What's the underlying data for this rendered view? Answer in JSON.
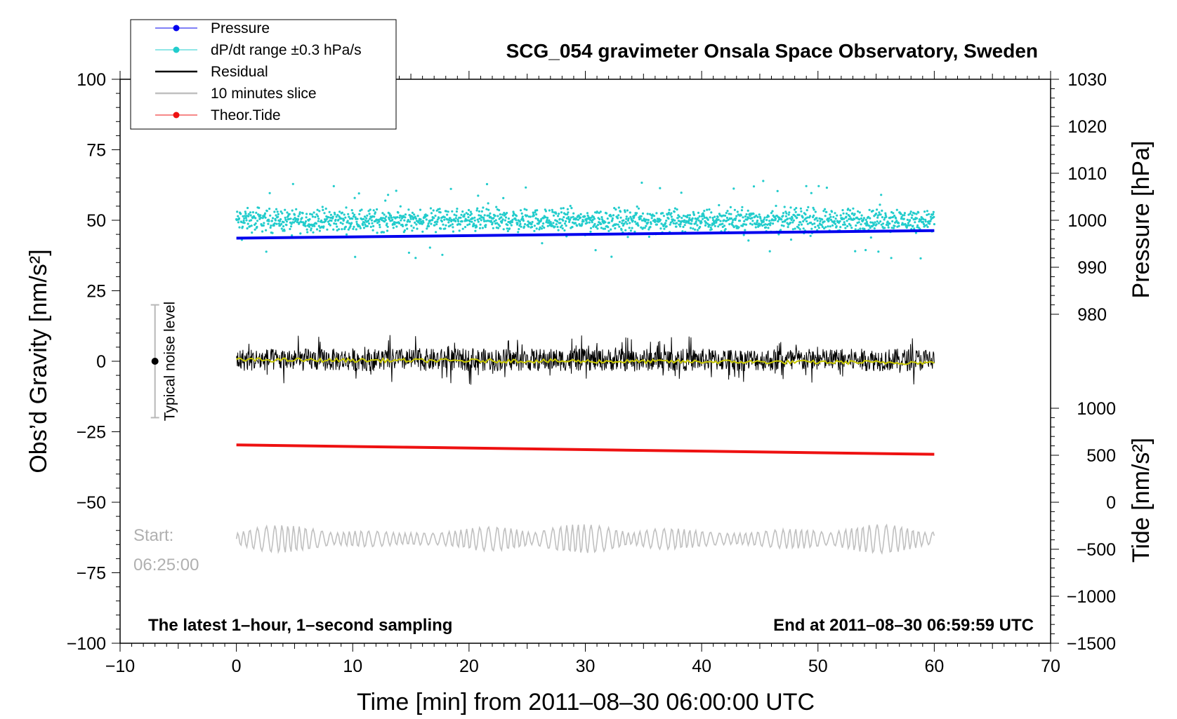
{
  "chart_data": {
    "type": "line",
    "title": "SCG_054 gravimeter Onsala Space Observatory, Sweden",
    "xlabel": "Time [min] from 2011–08–30 06:00:00 UTC",
    "ylabel_left": "Obs’d Gravity [nm/s²]",
    "ylabel_right_top": "Pressure [hPa]",
    "ylabel_right_bottom": "Tide [nm/s²]",
    "xlim": [
      -10,
      70
    ],
    "ylim": [
      -100,
      100
    ],
    "pressure_lim": [
      970,
      1030
    ],
    "tide_lim": [
      -1500,
      1500
    ],
    "x_ticks": [
      "−10",
      "0",
      "10",
      "20",
      "30",
      "40",
      "50",
      "60",
      "70"
    ],
    "y_ticks": [
      "−100",
      "−75",
      "−50",
      "−25",
      "0",
      "25",
      "50",
      "75",
      "100"
    ],
    "pressure_ticks": [
      "980",
      "990",
      "1000",
      "1010",
      "1020",
      "1030"
    ],
    "tide_ticks": [
      "−1500",
      "−1000",
      "−500",
      "0",
      "500",
      "1000"
    ],
    "legend": [
      {
        "label": "Pressure",
        "color": "#0000ee"
      },
      {
        "label": "dP/dt range ±0.3 hPa/s",
        "color": "#22cccc"
      },
      {
        "label": "Residual",
        "color": "#000000"
      },
      {
        "label": "10 minutes slice",
        "color": "#c0c0c0"
      },
      {
        "label": "Theor.Tide",
        "color": "#ee1111"
      }
    ],
    "series": [
      {
        "name": "Pressure",
        "axis": "pressure",
        "x": [
          0,
          60
        ],
        "values": [
          996.2,
          997.8
        ]
      },
      {
        "name": "dP/dt range ±0.3 hPa/s",
        "axis": "gravity",
        "x": [
          0,
          60
        ],
        "center": 50,
        "spread": 3
      },
      {
        "name": "Residual",
        "axis": "gravity",
        "x": [
          0,
          60
        ],
        "center": 0.5,
        "amplitude": 4
      },
      {
        "name": "Residual smoothed",
        "axis": "gravity",
        "x": [
          0,
          60
        ],
        "values": [
          0.5,
          -0.5
        ]
      },
      {
        "name": "10 minutes slice",
        "axis": "gravity",
        "x": [
          0,
          60
        ],
        "center": -63,
        "amplitude": 4
      },
      {
        "name": "Theor.Tide",
        "axis": "tide",
        "x": [
          0,
          60
        ],
        "values": [
          610,
          510
        ]
      }
    ],
    "noise_indicator": {
      "label": "Typical noise level",
      "x": -7,
      "center": 0,
      "range": [
        -20,
        20
      ]
    },
    "annotations": {
      "left_note": "The latest 1–hour, 1–second sampling",
      "right_note": "End at 2011–08–30 06:59:59 UTC",
      "start_label": "Start:",
      "start_time": "06:25:00"
    }
  }
}
